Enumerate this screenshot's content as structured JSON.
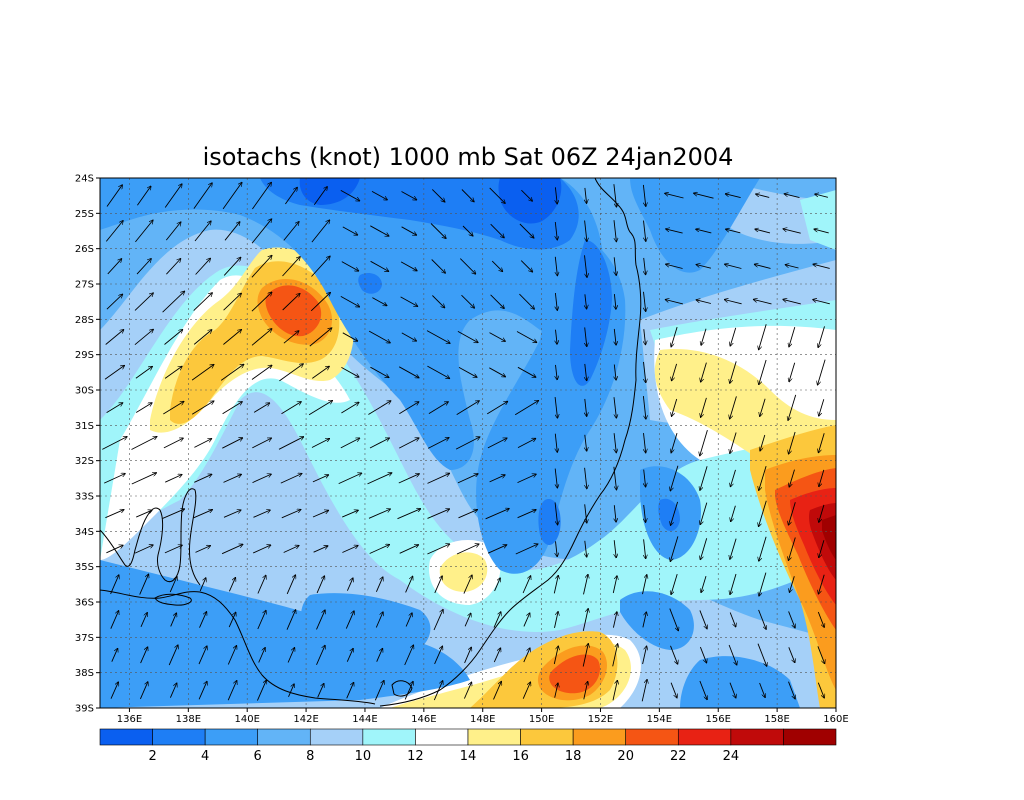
{
  "title": "isotachs (knot) 1000 mb Sat 06Z 24jan2004",
  "map": {
    "lon_range": [
      135,
      160
    ],
    "lat_range": [
      -39,
      -24
    ],
    "x_ticks": [
      "136E",
      "138E",
      "140E",
      "142E",
      "144E",
      "146E",
      "148E",
      "150E",
      "152E",
      "154E",
      "156E",
      "158E",
      "160E"
    ],
    "y_ticks": [
      "24S",
      "25S",
      "26S",
      "27S",
      "28S",
      "29S",
      "30S",
      "31S",
      "32S",
      "33S",
      "34S",
      "35S",
      "36S",
      "37S",
      "38S",
      "39S"
    ],
    "grid": "dotted",
    "coastline_color": "#000000"
  },
  "colorbar": {
    "labels": [
      "2",
      "4",
      "6",
      "8",
      "10",
      "12",
      "14",
      "16",
      "18",
      "20",
      "22",
      "24"
    ],
    "colors": [
      "#0a5ff0",
      "#1e7ef5",
      "#3c9ef7",
      "#62b4f7",
      "#a5d0f8",
      "#a0f5fa",
      "#ffffff",
      "#fff08a",
      "#fcc83c",
      "#fb9c1e",
      "#f55514",
      "#e82214",
      "#c00a0a",
      "#a00000"
    ]
  },
  "chart_data": {
    "type": "heatmap",
    "title": "isotachs (knot) 1000 mb Sat 06Z 24jan2004",
    "variable": "wind speed (knot) with wind vectors",
    "level": "1000 mb",
    "levels": [
      2,
      4,
      6,
      8,
      10,
      12,
      14,
      16,
      18,
      20,
      22,
      24
    ],
    "features": [
      {
        "label": "maximum over 158-160E, 33-35S",
        "value_range": [
          22,
          26
        ]
      },
      {
        "label": "maximum near 142E, 28S",
        "value_range": [
          18,
          20
        ]
      },
      {
        "label": "maximum near 151E, 38S",
        "value_range": [
          18,
          20
        ]
      },
      {
        "label": "maximum near 147E, 35S",
        "value_range": [
          14,
          16
        ]
      },
      {
        "label": "maximum near 139E, 30S",
        "value_range": [
          16,
          18
        ]
      }
    ]
  }
}
